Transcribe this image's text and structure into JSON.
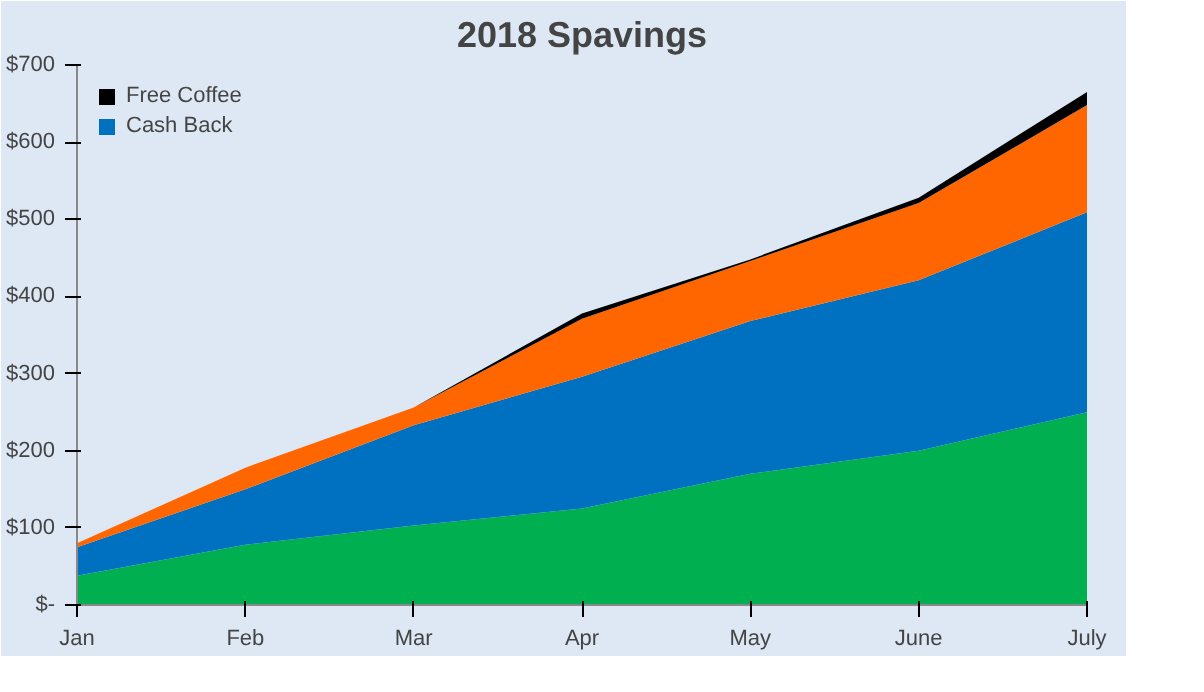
{
  "chart_data": {
    "type": "area",
    "stacked": true,
    "title": "2018 Spavings",
    "categories": [
      "Jan",
      "Feb",
      "Mar",
      "Apr",
      "May",
      "June",
      "July"
    ],
    "series": [
      {
        "color": "#00b050",
        "values": [
          38,
          78,
          103,
          125,
          170,
          200,
          250
        ]
      },
      {
        "name": "Cash Back",
        "color": "#0070c0",
        "values": [
          37,
          72,
          130,
          171,
          198,
          221,
          259
        ]
      },
      {
        "color": "#ff6600",
        "values": [
          5,
          28,
          23,
          75,
          78,
          100,
          139
        ]
      },
      {
        "name": "Free Coffee",
        "color": "#000000",
        "values": [
          0,
          0,
          0,
          7,
          2,
          7,
          17
        ]
      }
    ],
    "ylim": [
      0,
      700
    ],
    "yticks": [
      {
        "value": 0,
        "label": "$-"
      },
      {
        "value": 100,
        "label": "$100"
      },
      {
        "value": 200,
        "label": "$200"
      },
      {
        "value": 300,
        "label": "$300"
      },
      {
        "value": 400,
        "label": "$400"
      },
      {
        "value": 500,
        "label": "$500"
      },
      {
        "value": 600,
        "label": "$600"
      },
      {
        "value": 700,
        "label": "$700"
      }
    ],
    "grid": false,
    "legend": "top left"
  }
}
